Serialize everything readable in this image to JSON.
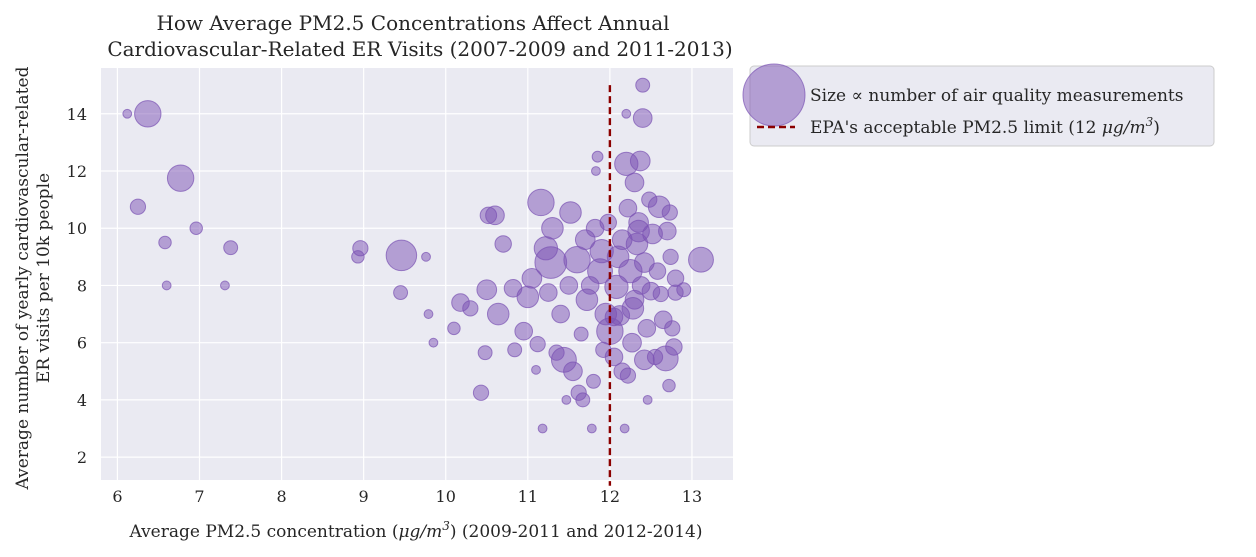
{
  "chart_data": {
    "type": "scatter",
    "title_lines": [
      "How Average PM2.5 Concentrations Affect Annual",
      "Cardiovascular-Related ER Visits (2007-2009 and 2011-2013)"
    ],
    "xlabel_prefix": "Average PM2.5 concentration (",
    "xlabel_unit": "μg/m",
    "xlabel_unit_exp": "3",
    "xlabel_suffix": ") (2009-2011 and 2012-2014)",
    "ylabel_lines": [
      "Average number of yearly cardiovascular-related",
      "ER visits per 10k people"
    ],
    "xlim": [
      5.8,
      13.5
    ],
    "ylim": [
      1.2,
      15.6
    ],
    "xticks": [
      6,
      7,
      8,
      9,
      10,
      11,
      12,
      13
    ],
    "yticks": [
      2,
      4,
      6,
      8,
      10,
      12,
      14
    ],
    "grid": true,
    "legend_position": "outside-right",
    "legend": {
      "bubble_label": "Size ∝ number of air quality measurements",
      "line_label_prefix": "EPA's acceptable PM2.5 limit (12 ",
      "line_label_unit": "μg/m",
      "line_label_exp": "3",
      "line_label_suffix": ")"
    },
    "reference_line": {
      "x": 12,
      "y_range": [
        1.0,
        15.0
      ],
      "color": "#8b0000",
      "style": "dashed"
    },
    "colors": {
      "bubble": "#7b52b4",
      "plot_bg": "#eaeaf2",
      "grid": "#ffffff"
    },
    "points": [
      {
        "x": 6.12,
        "y": 14.0,
        "s": 1
      },
      {
        "x": 6.37,
        "y": 14.0,
        "s": 9
      },
      {
        "x": 6.25,
        "y": 10.75,
        "s": 3
      },
      {
        "x": 6.77,
        "y": 11.75,
        "s": 9
      },
      {
        "x": 6.58,
        "y": 9.5,
        "s": 2
      },
      {
        "x": 6.96,
        "y": 10.0,
        "s": 2
      },
      {
        "x": 6.6,
        "y": 8.0,
        "s": 1
      },
      {
        "x": 7.38,
        "y": 9.32,
        "s": 2.5
      },
      {
        "x": 7.31,
        "y": 8.0,
        "s": 1
      },
      {
        "x": 8.96,
        "y": 9.3,
        "s": 3
      },
      {
        "x": 8.93,
        "y": 9.0,
        "s": 2
      },
      {
        "x": 9.46,
        "y": 9.05,
        "s": 12
      },
      {
        "x": 9.45,
        "y": 7.75,
        "s": 2.5
      },
      {
        "x": 9.76,
        "y": 9.0,
        "s": 1
      },
      {
        "x": 9.79,
        "y": 7.0,
        "s": 1
      },
      {
        "x": 9.85,
        "y": 6.0,
        "s": 1
      },
      {
        "x": 10.1,
        "y": 6.5,
        "s": 2
      },
      {
        "x": 10.18,
        "y": 7.4,
        "s": 4
      },
      {
        "x": 10.3,
        "y": 7.2,
        "s": 3
      },
      {
        "x": 10.43,
        "y": 4.25,
        "s": 3
      },
      {
        "x": 10.48,
        "y": 5.65,
        "s": 2.5
      },
      {
        "x": 10.5,
        "y": 7.85,
        "s": 5
      },
      {
        "x": 10.52,
        "y": 10.45,
        "s": 3.5
      },
      {
        "x": 10.6,
        "y": 10.45,
        "s": 4.5
      },
      {
        "x": 10.64,
        "y": 7.0,
        "s": 6
      },
      {
        "x": 10.7,
        "y": 9.45,
        "s": 3.5
      },
      {
        "x": 10.82,
        "y": 7.9,
        "s": 4
      },
      {
        "x": 10.84,
        "y": 5.75,
        "s": 2.5
      },
      {
        "x": 10.95,
        "y": 6.4,
        "s": 4
      },
      {
        "x": 11.0,
        "y": 7.6,
        "s": 6
      },
      {
        "x": 11.05,
        "y": 8.25,
        "s": 5
      },
      {
        "x": 11.1,
        "y": 5.05,
        "s": 1
      },
      {
        "x": 11.12,
        "y": 5.95,
        "s": 3
      },
      {
        "x": 11.16,
        "y": 10.9,
        "s": 9
      },
      {
        "x": 11.18,
        "y": 3.0,
        "s": 1
      },
      {
        "x": 11.22,
        "y": 9.3,
        "s": 7
      },
      {
        "x": 11.25,
        "y": 7.75,
        "s": 4
      },
      {
        "x": 11.28,
        "y": 8.8,
        "s": 13
      },
      {
        "x": 11.3,
        "y": 10.0,
        "s": 6
      },
      {
        "x": 11.35,
        "y": 5.65,
        "s": 3
      },
      {
        "x": 11.4,
        "y": 7.0,
        "s": 4
      },
      {
        "x": 11.44,
        "y": 5.4,
        "s": 8
      },
      {
        "x": 11.47,
        "y": 4.0,
        "s": 1
      },
      {
        "x": 11.5,
        "y": 8.0,
        "s": 4
      },
      {
        "x": 11.52,
        "y": 10.55,
        "s": 6
      },
      {
        "x": 11.55,
        "y": 5.0,
        "s": 4.5
      },
      {
        "x": 11.6,
        "y": 8.9,
        "s": 9
      },
      {
        "x": 11.62,
        "y": 4.25,
        "s": 3
      },
      {
        "x": 11.65,
        "y": 6.3,
        "s": 2.5
      },
      {
        "x": 11.67,
        "y": 4.0,
        "s": 2.5
      },
      {
        "x": 11.7,
        "y": 9.6,
        "s": 5
      },
      {
        "x": 11.72,
        "y": 7.5,
        "s": 6
      },
      {
        "x": 11.76,
        "y": 8.0,
        "s": 4
      },
      {
        "x": 11.78,
        "y": 3.0,
        "s": 1
      },
      {
        "x": 11.8,
        "y": 4.65,
        "s": 2.5
      },
      {
        "x": 11.82,
        "y": 10.0,
        "s": 4
      },
      {
        "x": 11.83,
        "y": 12.0,
        "s": 1
      },
      {
        "x": 11.85,
        "y": 12.5,
        "s": 1.5
      },
      {
        "x": 11.88,
        "y": 8.5,
        "s": 8
      },
      {
        "x": 11.9,
        "y": 9.2,
        "s": 7
      },
      {
        "x": 11.92,
        "y": 5.75,
        "s": 3
      },
      {
        "x": 11.95,
        "y": 7.0,
        "s": 6
      },
      {
        "x": 11.98,
        "y": 10.2,
        "s": 3.5
      },
      {
        "x": 12.0,
        "y": 6.4,
        "s": 9
      },
      {
        "x": 12.05,
        "y": 5.5,
        "s": 4
      },
      {
        "x": 12.08,
        "y": 7.95,
        "s": 7
      },
      {
        "x": 12.1,
        "y": 9.0,
        "s": 6
      },
      {
        "x": 12.12,
        "y": 6.95,
        "s": 5
      },
      {
        "x": 12.15,
        "y": 5.0,
        "s": 3.5
      },
      {
        "x": 12.18,
        "y": 3.0,
        "s": 1
      },
      {
        "x": 12.2,
        "y": 12.25,
        "s": 7
      },
      {
        "x": 12.2,
        "y": 14.0,
        "s": 1
      },
      {
        "x": 12.22,
        "y": 4.85,
        "s": 3
      },
      {
        "x": 12.25,
        "y": 8.5,
        "s": 7
      },
      {
        "x": 12.27,
        "y": 6.0,
        "s": 4.5
      },
      {
        "x": 12.3,
        "y": 7.5,
        "s": 4.5
      },
      {
        "x": 12.3,
        "y": 11.6,
        "s": 4.5
      },
      {
        "x": 12.33,
        "y": 9.45,
        "s": 6
      },
      {
        "x": 12.35,
        "y": 10.2,
        "s": 5
      },
      {
        "x": 12.37,
        "y": 12.35,
        "s": 5
      },
      {
        "x": 12.4,
        "y": 13.85,
        "s": 4.5
      },
      {
        "x": 12.4,
        "y": 15.0,
        "s": 2.5
      },
      {
        "x": 12.42,
        "y": 8.8,
        "s": 5
      },
      {
        "x": 12.45,
        "y": 6.5,
        "s": 4
      },
      {
        "x": 12.46,
        "y": 4.0,
        "s": 1
      },
      {
        "x": 12.48,
        "y": 11.0,
        "s": 3
      },
      {
        "x": 12.5,
        "y": 7.8,
        "s": 4
      },
      {
        "x": 12.52,
        "y": 9.8,
        "s": 5
      },
      {
        "x": 12.55,
        "y": 5.5,
        "s": 3
      },
      {
        "x": 12.58,
        "y": 8.5,
        "s": 3.5
      },
      {
        "x": 12.6,
        "y": 10.75,
        "s": 6
      },
      {
        "x": 12.62,
        "y": 7.7,
        "s": 3
      },
      {
        "x": 12.65,
        "y": 6.8,
        "s": 4
      },
      {
        "x": 12.68,
        "y": 5.45,
        "s": 8
      },
      {
        "x": 12.7,
        "y": 9.9,
        "s": 4
      },
      {
        "x": 12.72,
        "y": 4.5,
        "s": 2
      },
      {
        "x": 12.73,
        "y": 10.55,
        "s": 3
      },
      {
        "x": 12.74,
        "y": 9.0,
        "s": 3
      },
      {
        "x": 12.76,
        "y": 6.5,
        "s": 3
      },
      {
        "x": 12.78,
        "y": 5.85,
        "s": 3.5
      },
      {
        "x": 12.8,
        "y": 8.25,
        "s": 3.5
      },
      {
        "x": 12.8,
        "y": 7.75,
        "s": 3
      },
      {
        "x": 12.9,
        "y": 7.85,
        "s": 2.5
      },
      {
        "x": 13.11,
        "y": 8.9,
        "s": 8
      },
      {
        "x": 12.35,
        "y": 9.9,
        "s": 6
      },
      {
        "x": 12.28,
        "y": 7.2,
        "s": 6
      },
      {
        "x": 12.42,
        "y": 5.4,
        "s": 5
      },
      {
        "x": 12.15,
        "y": 9.6,
        "s": 5
      },
      {
        "x": 12.22,
        "y": 10.7,
        "s": 4
      },
      {
        "x": 12.38,
        "y": 8.0,
        "s": 4
      },
      {
        "x": 12.05,
        "y": 6.9,
        "s": 4
      }
    ]
  }
}
